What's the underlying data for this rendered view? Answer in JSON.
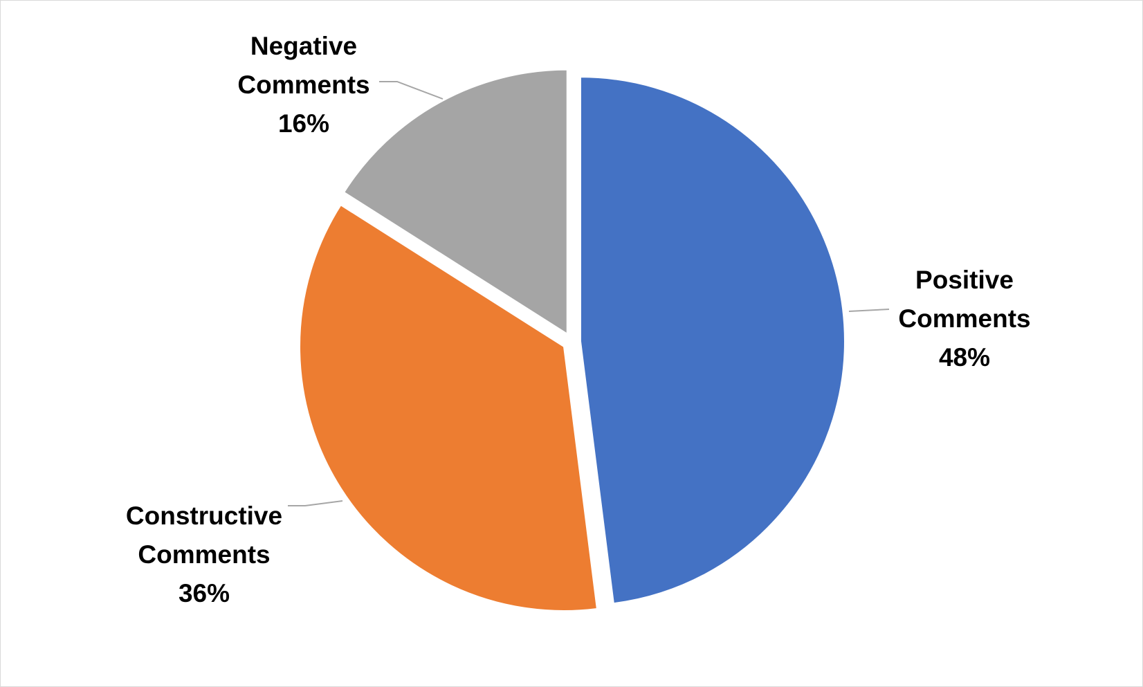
{
  "chart_data": {
    "type": "pie",
    "categories": [
      "Positive Comments",
      "Constructive Comments",
      "Negative Comments"
    ],
    "values": [
      48,
      36,
      16
    ],
    "value_labels": [
      "48%",
      "36%",
      "16%"
    ],
    "colors": [
      "#4472c4",
      "#ed7d31",
      "#a5a5a5"
    ]
  }
}
